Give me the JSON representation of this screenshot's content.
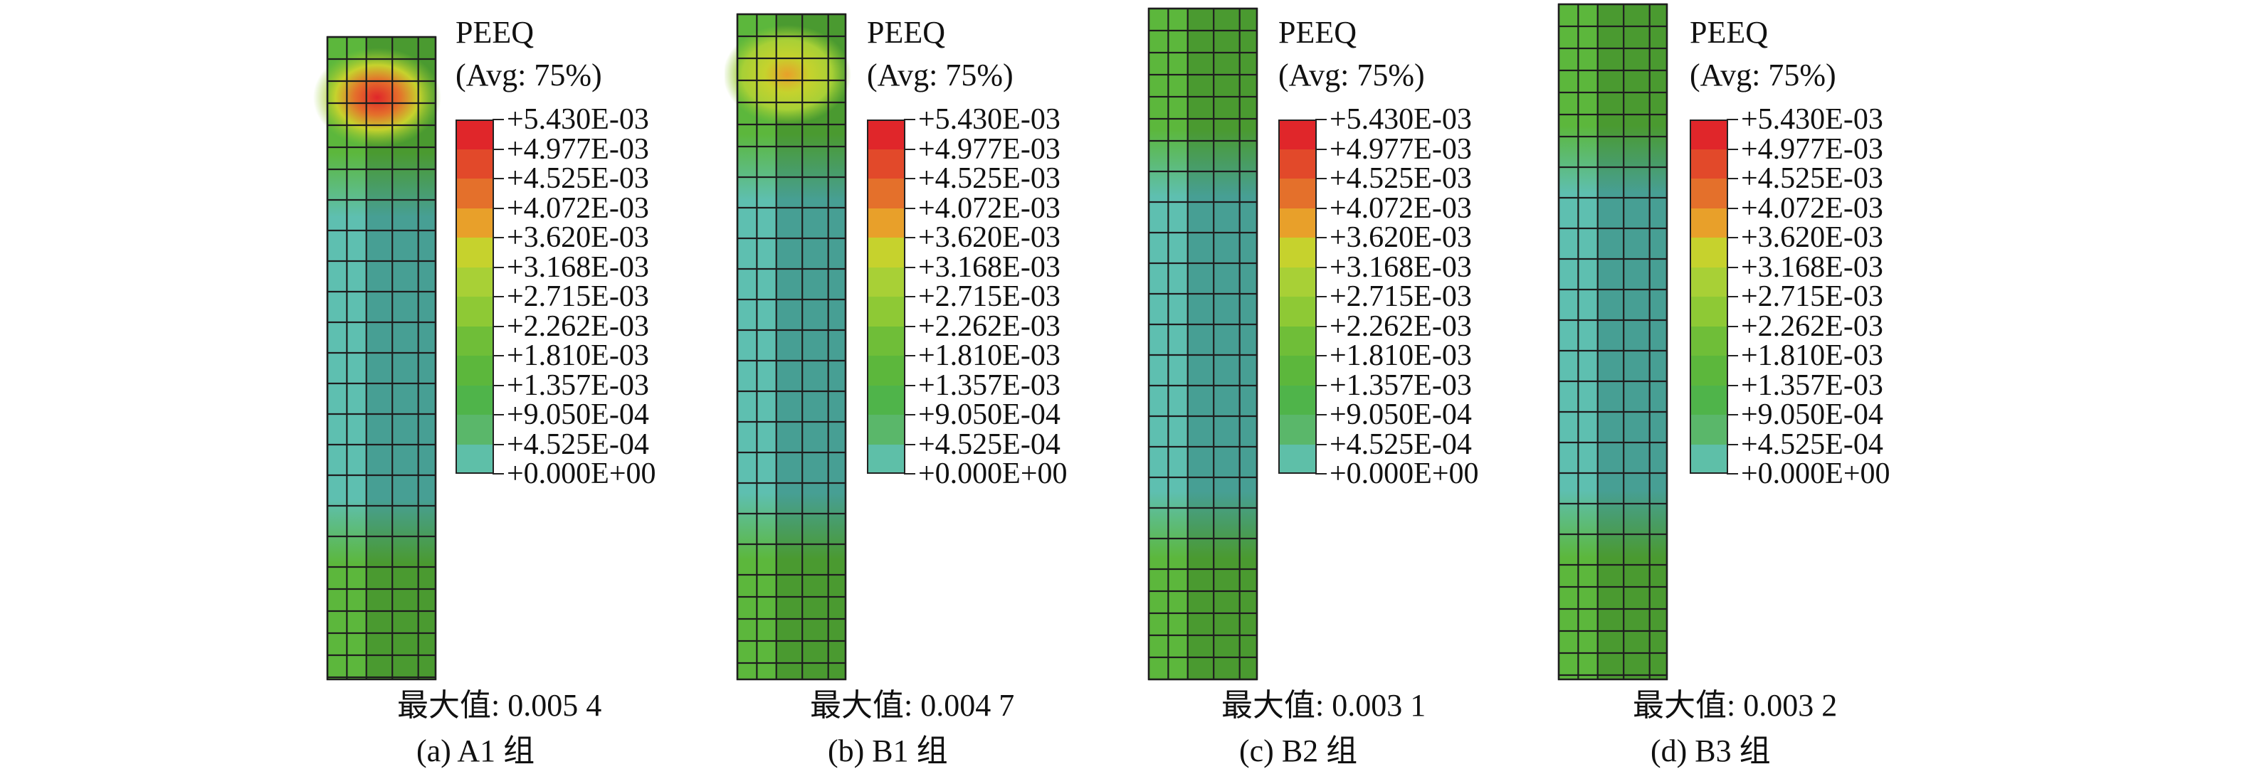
{
  "legend": {
    "title": "PEEQ",
    "subtitle": "(Avg: 75%)",
    "levels": [
      {
        "label": "+5.430E-03",
        "color": "#e0262a"
      },
      {
        "label": "+4.977E-03",
        "color": "#e2492a"
      },
      {
        "label": "+4.525E-03",
        "color": "#e4702b"
      },
      {
        "label": "+4.072E-03",
        "color": "#e8a02a"
      },
      {
        "label": "+3.620E-03",
        "color": "#c6d22d"
      },
      {
        "label": "+3.168E-03",
        "color": "#a8d036"
      },
      {
        "label": "+2.715E-03",
        "color": "#8ec935"
      },
      {
        "label": "+2.262E-03",
        "color": "#6fbe38"
      },
      {
        "label": "+1.810E-03",
        "color": "#5cb73c"
      },
      {
        "label": "+1.357E-03",
        "color": "#4fb44a"
      },
      {
        "label": "+9.050E-04",
        "color": "#5ab76a"
      },
      {
        "label": "+4.525E-04",
        "color": "#5ebfa8"
      },
      {
        "label": "+0.000E+00",
        "color": null
      }
    ]
  },
  "panels": [
    {
      "max_label": "最大值: 0.005 4",
      "caption": "(a) A1 组",
      "hotspot": "red"
    },
    {
      "max_label": "最大值: 0.004 7",
      "caption": "(b) B1 组",
      "hotspot": "yellow"
    },
    {
      "max_label": "最大值: 0.003 1",
      "caption": "(c) B2 组",
      "hotspot": "none"
    },
    {
      "max_label": "最大值: 0.003 2",
      "caption": "(d) B3 组",
      "hotspot": "none"
    }
  ],
  "colors": {
    "base_teal": "#5ebfb0",
    "base_teal_dark": "#479f94",
    "green": "#5cb73c",
    "green_dark": "#4a9a30",
    "mesh_line": "#1e1e1e"
  }
}
